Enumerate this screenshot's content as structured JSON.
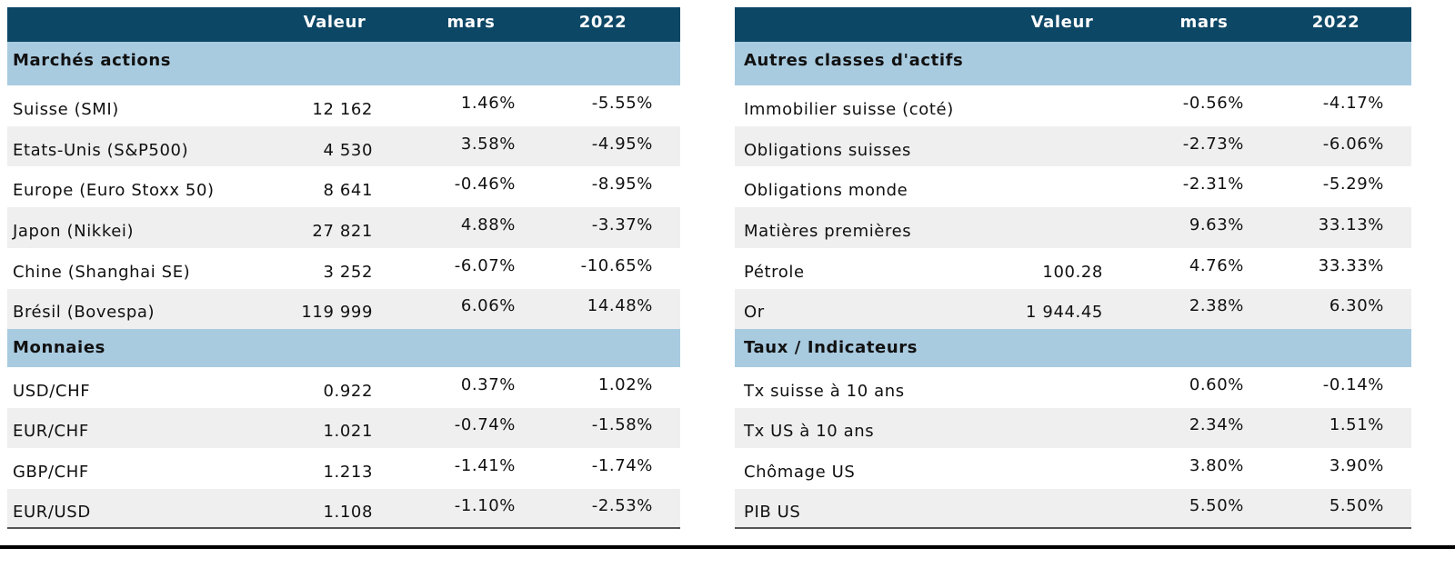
{
  "tables": [
    {
      "header": [
        "Valeur",
        "mars",
        "2022"
      ],
      "sections": [
        {
          "title": "Marchés actions",
          "rows": [
            {
              "label": "Suisse (SMI)",
              "valeur": "12 162",
              "mars": "1.46%",
              "year": "-5.55%"
            },
            {
              "label": "Etats-Unis (S&P500)",
              "valeur": "4 530",
              "mars": "3.58%",
              "year": "-4.95%"
            },
            {
              "label": "Europe (Euro Stoxx 50)",
              "valeur": "8 641",
              "mars": "-0.46%",
              "year": "-8.95%"
            },
            {
              "label": "Japon (Nikkei)",
              "valeur": "27 821",
              "mars": "4.88%",
              "year": "-3.37%"
            },
            {
              "label": "Chine (Shanghai SE)",
              "valeur": "3 252",
              "mars": "-6.07%",
              "year": "-10.65%"
            },
            {
              "label": "Brésil (Bovespa)",
              "valeur": "119 999",
              "mars": "6.06%",
              "year": "14.48%"
            }
          ]
        },
        {
          "title": "Monnaies",
          "rows": [
            {
              "label": "USD/CHF",
              "valeur": "0.922",
              "mars": "0.37%",
              "year": "1.02%"
            },
            {
              "label": "EUR/CHF",
              "valeur": "1.021",
              "mars": "-0.74%",
              "year": "-1.58%"
            },
            {
              "label": "GBP/CHF",
              "valeur": "1.213",
              "mars": "-1.41%",
              "year": "-1.74%"
            },
            {
              "label": "EUR/USD",
              "valeur": "1.108",
              "mars": "-1.10%",
              "year": "-2.53%"
            }
          ]
        }
      ]
    },
    {
      "header": [
        "Valeur",
        "mars",
        "2022"
      ],
      "sections": [
        {
          "title": "Autres classes d'actifs",
          "rows": [
            {
              "label": "Immobilier suisse (coté)",
              "mars": "-0.56%",
              "year": "-4.17%"
            },
            {
              "label": "Obligations suisses",
              "mars": "-2.73%",
              "year": "-6.06%"
            },
            {
              "label": "Obligations monde",
              "mars": "-2.31%",
              "year": "-5.29%"
            },
            {
              "label": "Matières premières",
              "mars": "9.63%",
              "year": "33.13%"
            },
            {
              "label": "Pétrole",
              "valeur": "100.28",
              "mars": "4.76%",
              "year": "33.33%"
            },
            {
              "label": "Or",
              "valeur": "1 944.45",
              "mars": "2.38%",
              "year": "6.30%"
            }
          ]
        },
        {
          "title": "Taux / Indicateurs",
          "rows": [
            {
              "label": "Tx suisse à 10 ans",
              "mars": "0.60%",
              "year": "-0.14%"
            },
            {
              "label": "Tx US à 10 ans",
              "mars": "2.34%",
              "year": "1.51%"
            },
            {
              "label": "Chômage US",
              "mars": "3.80%",
              "year": "3.90%"
            },
            {
              "label": "PIB US",
              "mars": "5.50%",
              "year": "5.50%"
            }
          ]
        }
      ]
    }
  ]
}
